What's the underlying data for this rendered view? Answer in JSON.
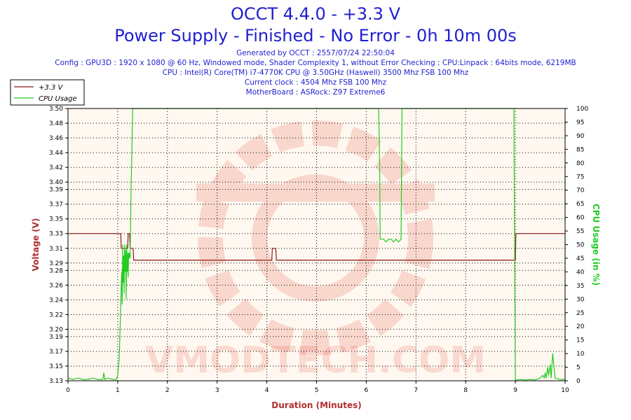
{
  "header": {
    "title": "OCCT 4.4.0 - +3.3 V",
    "subtitle": "Power Supply - Finished - No Error - 0h 10m 00s",
    "info_lines": [
      "Generated by OCCT : 2557/07/24 22:50:04",
      "Config : GPU3D : 1920 x 1080 @ 60 Hz, Windowed mode, Shader Complexity 1, without Error Checking ; CPU:Linpack : 64bits mode, 6219MB",
      "CPU : Intel(R) Core(TM) i7-4770K CPU @ 3.50GHz (Haswell) 3500 Mhz FSB 100 Mhz",
      "Current clock : 4504 Mhz FSB 100 Mhz",
      "MotherBoard : ASRock: Z97 Extreme6"
    ]
  },
  "watermark_text": "VMODTECH.COM",
  "colors": {
    "title": "#1f1fd0",
    "voltage": "#8b1a1a",
    "cpu": "#22cc22",
    "axis_label_left": "#b03030",
    "axis_label_right": "#22cc22",
    "axis_label_x": "#b03030",
    "plot_bg": "#fff8f0"
  },
  "chart_data": {
    "type": "line",
    "xlabel": "Duration (Minutes)",
    "ylabel": "Voltage (V)",
    "y2label": "CPU Usage (in %)",
    "xlim": [
      0,
      10
    ],
    "ylim": [
      3.13,
      3.5
    ],
    "y2lim": [
      0,
      100
    ],
    "grid": true,
    "legend_position": "top-left",
    "x_ticks": [
      "0",
      "1",
      "2",
      "3",
      "4",
      "5",
      "6",
      "7",
      "8",
      "9",
      "10"
    ],
    "y_ticks": [
      "3.13",
      "3.15",
      "3.17",
      "3.19",
      "3.20",
      "3.22",
      "3.24",
      "3.26",
      "3.28",
      "3.29",
      "3.31",
      "3.33",
      "3.35",
      "3.37",
      "3.39",
      "3.40",
      "3.42",
      "3.44",
      "3.46",
      "3.48",
      "3.50"
    ],
    "y2_ticks": [
      "0",
      "5",
      "10",
      "15",
      "20",
      "25",
      "30",
      "35",
      "40",
      "45",
      "50",
      "55",
      "60",
      "65",
      "70",
      "75",
      "80",
      "85",
      "90",
      "95",
      "100"
    ],
    "series": [
      {
        "name": "+3.3 V",
        "axis": "left",
        "x": [
          0,
          1.06,
          1.07,
          1.2,
          1.21,
          1.24,
          1.25,
          1.31,
          1.32,
          4.1,
          4.11,
          4.18,
          4.19,
          9.0,
          9.01,
          10
        ],
        "y": [
          3.33,
          3.33,
          3.31,
          3.31,
          3.33,
          3.33,
          3.31,
          3.31,
          3.294,
          3.294,
          3.31,
          3.31,
          3.294,
          3.294,
          3.33,
          3.33
        ]
      },
      {
        "name": "CPU Usage",
        "axis": "right",
        "x": [
          0,
          0.1,
          0.2,
          0.3,
          0.4,
          0.5,
          0.6,
          0.7,
          0.72,
          0.74,
          0.8,
          0.9,
          0.97,
          1.0,
          1.03,
          1.05,
          1.07,
          1.08,
          1.09,
          1.1,
          1.11,
          1.12,
          1.13,
          1.14,
          1.15,
          1.16,
          1.17,
          1.18,
          1.19,
          1.2,
          1.21,
          1.22,
          1.23,
          1.24,
          1.25,
          1.27,
          1.3,
          1.32,
          3.0,
          6.25,
          6.27,
          6.28,
          6.3,
          6.35,
          6.4,
          6.45,
          6.5,
          6.55,
          6.6,
          6.65,
          6.7,
          6.72,
          6.74,
          8.97,
          8.98,
          9.0,
          9.01,
          9.03,
          9.1,
          9.2,
          9.3,
          9.4,
          9.5,
          9.55,
          9.58,
          9.6,
          9.62,
          9.65,
          9.67,
          9.7,
          9.72,
          9.75,
          9.8,
          9.9,
          10.0
        ],
        "y": [
          1,
          0.5,
          1,
          0.5,
          0.5,
          1,
          0.5,
          0.5,
          3,
          0.5,
          1,
          0.5,
          0.5,
          2,
          8,
          20,
          35,
          40,
          28,
          50,
          36,
          46,
          32,
          50,
          40,
          48,
          30,
          50,
          40,
          47,
          38,
          47,
          45,
          47,
          45,
          70,
          100,
          100,
          100,
          100,
          80,
          52,
          52,
          52,
          51,
          52,
          52,
          51,
          52,
          51,
          52,
          100,
          100,
          100,
          60,
          0.5,
          0.5,
          0.3,
          0.5,
          0.3,
          0.5,
          0.3,
          1,
          2,
          1,
          3,
          1,
          5,
          2,
          6,
          1,
          10,
          1,
          0.5,
          0.5
        ]
      }
    ]
  }
}
